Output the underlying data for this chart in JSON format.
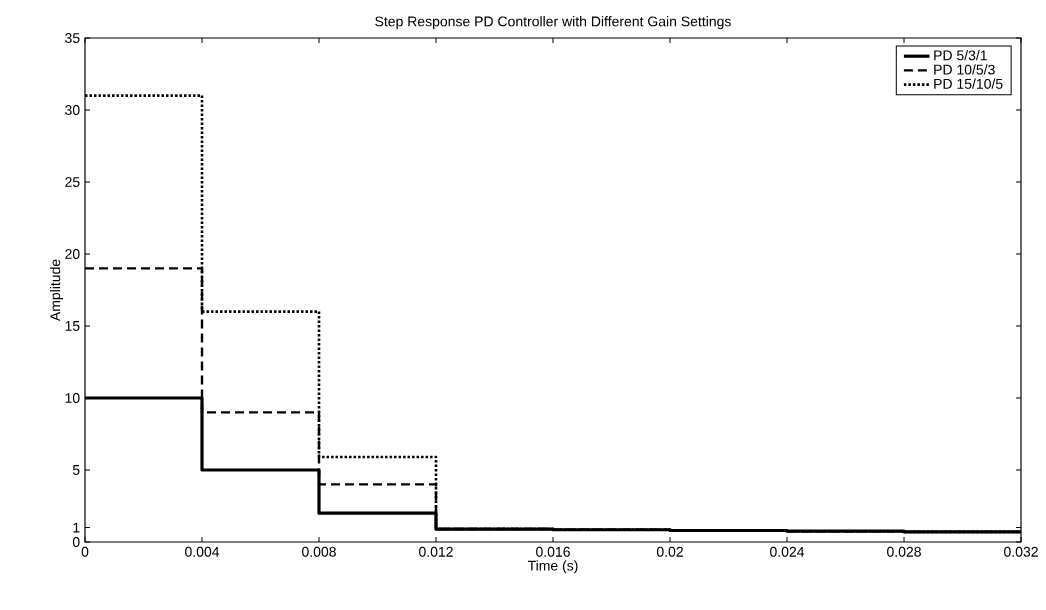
{
  "chart_data": {
    "type": "step",
    "title": "Step Response PD Controller with Different Gain Settings",
    "xlabel": "Time (s)",
    "ylabel": "Amplitude",
    "x": [
      0,
      0.004,
      0.008,
      0.012,
      0.016,
      0.02,
      0.024,
      0.028,
      0.032
    ],
    "series": [
      {
        "name": "PD 5/3/1",
        "color": "#000000",
        "line_style": "solid",
        "values": [
          10,
          5,
          2,
          0.9,
          0.85,
          0.8,
          0.75,
          0.7,
          0.7
        ]
      },
      {
        "name": "PD 10/5/3",
        "color": "#000000",
        "line_style": "dashed",
        "values": [
          19,
          9,
          4,
          0.9,
          0.85,
          0.8,
          0.75,
          0.7,
          0.7
        ]
      },
      {
        "name": "PD 15/10/5",
        "color": "#000000",
        "line_style": "dotted",
        "values": [
          31,
          16,
          5.9,
          0.9,
          0.85,
          0.8,
          0.75,
          0.7,
          0.7
        ]
      }
    ],
    "xlim": [
      0,
      0.032
    ],
    "xticks": [
      0,
      0.004,
      0.008,
      0.012,
      0.016,
      0.02,
      0.024,
      0.028,
      0.032
    ],
    "ylim": [
      0,
      35
    ],
    "yticks": [
      0,
      1,
      5,
      10,
      15,
      20,
      25,
      30,
      35
    ],
    "grid": false,
    "legend": "top right",
    "marker": "none"
  }
}
